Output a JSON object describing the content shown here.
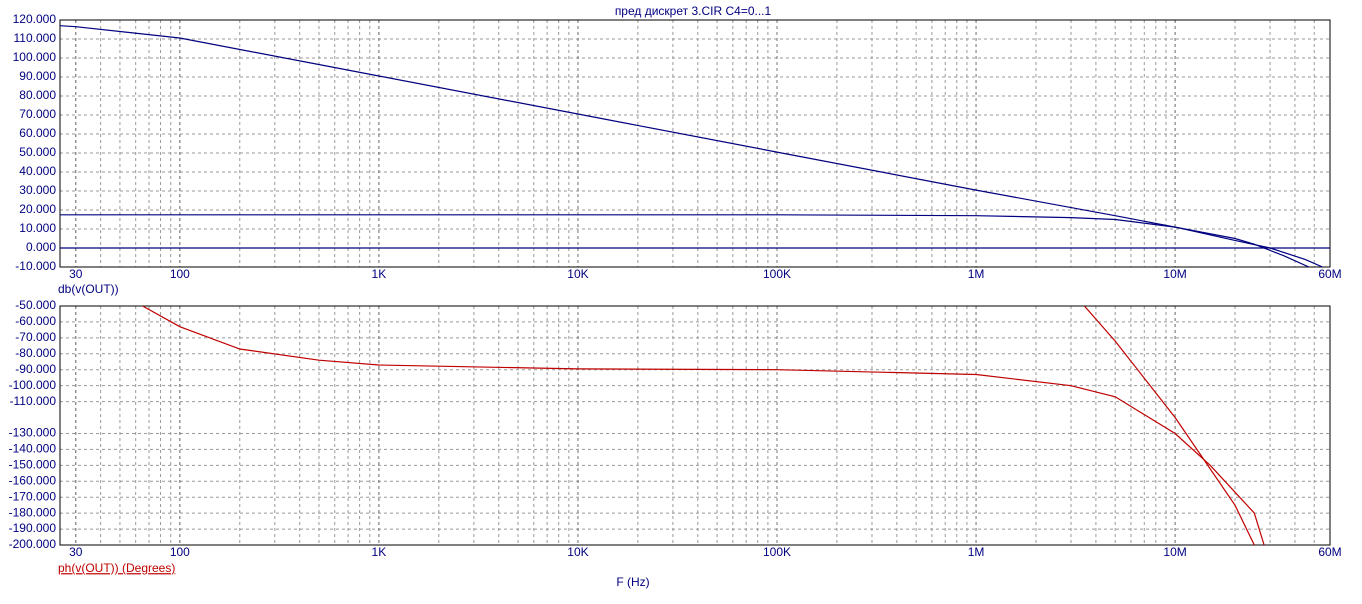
{
  "chart_data": [
    {
      "type": "line",
      "title": "пред дискрет  3.CIR C4=0...1",
      "ylabel": "db(v(OUT))",
      "label_color": "#000080",
      "log_x": true,
      "grid": true,
      "minor_grid": true,
      "xlim": [
        25,
        60000000
      ],
      "xticks": [
        30,
        100,
        {
          "value": 1000,
          "label": "1K"
        },
        {
          "value": 10000,
          "label": "10K"
        },
        {
          "value": 100000,
          "label": "100K"
        },
        {
          "value": 1000000,
          "label": "1M"
        },
        {
          "value": 10000000,
          "label": "10M"
        },
        {
          "value": 60000000,
          "label": "60M"
        }
      ],
      "ylim": [
        -10,
        120
      ],
      "yticks": [
        {
          "value": -10,
          "label": "-10.000"
        },
        {
          "value": 0,
          "label": "0.000"
        },
        {
          "value": 10,
          "label": "10.000"
        },
        {
          "value": 20,
          "label": "20.000"
        },
        {
          "value": 30,
          "label": "30.000"
        },
        {
          "value": 40,
          "label": "40.000"
        },
        {
          "value": 50,
          "label": "50.000"
        },
        {
          "value": 60,
          "label": "60.000"
        },
        {
          "value": 70,
          "label": "70.000"
        },
        {
          "value": 80,
          "label": "80.000"
        },
        {
          "value": 90,
          "label": "90.000"
        },
        {
          "value": 100,
          "label": "100.000"
        },
        {
          "value": 110,
          "label": "110.000"
        },
        {
          "value": 120,
          "label": "120.000"
        }
      ],
      "series": [
        {
          "color": "#000080",
          "x": [
            25,
            30,
            100,
            1000,
            10000,
            100000,
            1000000,
            5000000,
            10000000,
            20000000,
            30000000,
            45000000,
            55000000
          ],
          "values": [
            117,
            116.5,
            110.5,
            90.5,
            70.5,
            50.5,
            30.5,
            17,
            11,
            4,
            0,
            -6,
            -10
          ]
        },
        {
          "color": "#000080",
          "x": [
            25,
            100000,
            1000000,
            3000000,
            5000000,
            10000000,
            20000000,
            25000000,
            35000000,
            47000000
          ],
          "values": [
            17.5,
            17.5,
            17,
            16,
            15,
            11,
            5,
            2,
            -4,
            -10
          ]
        },
        {
          "color": "#000080",
          "x": [
            25,
            60000000
          ],
          "values": [
            0,
            0
          ]
        }
      ]
    },
    {
      "type": "line",
      "ylabel": "ph(v(OUT)) (Degrees)",
      "xlabel": "F (Hz)",
      "label_color": "#c00000",
      "log_x": true,
      "grid": true,
      "minor_grid": true,
      "xlim": [
        25,
        60000000
      ],
      "xticks": [
        30,
        100,
        {
          "value": 1000,
          "label": "1K"
        },
        {
          "value": 10000,
          "label": "10K"
        },
        {
          "value": 100000,
          "label": "100K"
        },
        {
          "value": 1000000,
          "label": "1M"
        },
        {
          "value": 10000000,
          "label": "10M"
        },
        {
          "value": 60000000,
          "label": "60M"
        }
      ],
      "ylim": [
        -200,
        -50
      ],
      "yticks": [
        {
          "value": -200,
          "label": "-200.000"
        },
        {
          "value": -190,
          "label": "-190.000"
        },
        {
          "value": -180,
          "label": "-180.000"
        },
        {
          "value": -170,
          "label": "-170.000"
        },
        {
          "value": -160,
          "label": "-160.000"
        },
        {
          "value": -150,
          "label": "-150.000"
        },
        {
          "value": -140,
          "label": "-140.000"
        },
        {
          "value": -130,
          "label": "-130.000"
        },
        {
          "value": -110,
          "label": "-110.000"
        },
        {
          "value": -100,
          "label": "-100.000"
        },
        {
          "value": -90,
          "label": "-90.000"
        },
        {
          "value": -80,
          "label": "-80.000"
        },
        {
          "value": -70,
          "label": "-70.000"
        },
        {
          "value": -60,
          "label": "-60.000"
        },
        {
          "value": -50,
          "label": "-50.000"
        }
      ],
      "series": [
        {
          "color": "#c00000",
          "x": [
            65,
            100,
            200,
            500,
            1000,
            10000,
            100000,
            1000000,
            3000000,
            5000000,
            10000000,
            15000000,
            25000000,
            28000000
          ],
          "values": [
            -50,
            -63,
            -77,
            -84,
            -87,
            -89.5,
            -90,
            -93,
            -100,
            -107,
            -130,
            -150,
            -180,
            -200
          ]
        },
        {
          "color": "#c00000",
          "x": [
            3500000,
            5000000,
            10000000,
            20000000,
            25000000
          ],
          "values": [
            -50,
            -72,
            -120,
            -175,
            -200
          ]
        }
      ]
    }
  ]
}
